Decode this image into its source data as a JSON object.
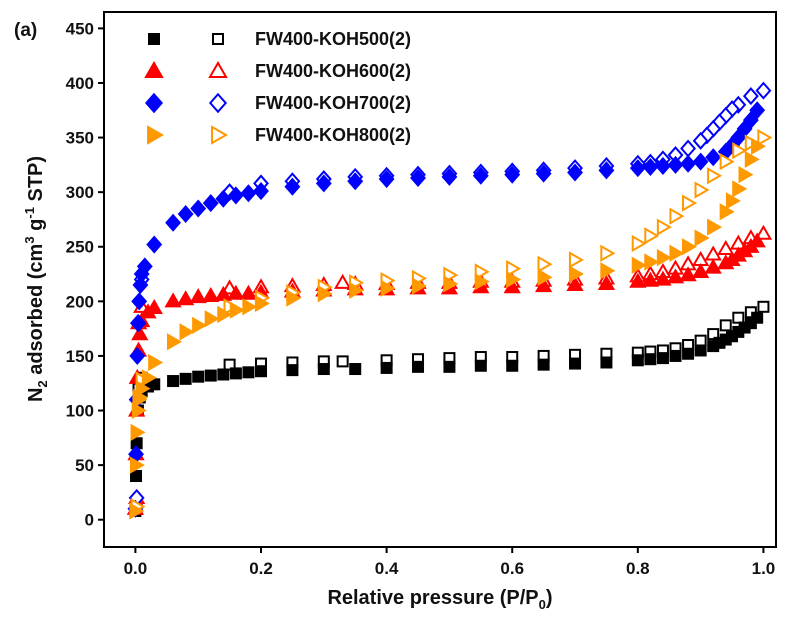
{
  "chart_data": {
    "type": "scatter",
    "panel_label": "(a)",
    "xlabel": "Relative pressure (P/P",
    "xlabel_sub": "0",
    "xlabel_end": ")",
    "ylabel": {
      "n": "N",
      "n_sub": "2",
      "mid": " adsorbed (cm",
      "cm_sup": "3",
      "g": " g",
      "g_sup": "-1",
      "end": " STP)"
    },
    "xlim": [
      -0.05,
      1.02
    ],
    "ylim": [
      -25,
      465
    ],
    "xticks": [
      0.0,
      0.2,
      0.4,
      0.6,
      0.8,
      1.0
    ],
    "xtick_labels": [
      "0.0",
      "0.2",
      "0.4",
      "0.6",
      "0.8",
      "1.0"
    ],
    "yticks": [
      0,
      50,
      100,
      150,
      200,
      250,
      300,
      350,
      400,
      450
    ],
    "ytick_labels": [
      "0",
      "50",
      "100",
      "150",
      "200",
      "250",
      "300",
      "350",
      "400",
      "450"
    ],
    "legend_position": "top-left",
    "series": [
      {
        "name": "FW400-KOH500(2)",
        "color": "#000000",
        "marker": "square",
        "adsorption": [
          [
            0.0,
            8
          ],
          [
            0.001,
            40
          ],
          [
            0.002,
            70
          ],
          [
            0.004,
            100
          ],
          [
            0.007,
            112
          ],
          [
            0.01,
            118
          ],
          [
            0.02,
            122
          ],
          [
            0.03,
            124
          ],
          [
            0.06,
            127
          ],
          [
            0.08,
            129
          ],
          [
            0.1,
            131
          ],
          [
            0.12,
            132
          ],
          [
            0.14,
            133
          ],
          [
            0.16,
            134
          ],
          [
            0.18,
            135
          ],
          [
            0.2,
            136
          ],
          [
            0.25,
            137
          ],
          [
            0.3,
            138
          ],
          [
            0.35,
            138
          ],
          [
            0.4,
            139
          ],
          [
            0.45,
            140
          ],
          [
            0.5,
            140
          ],
          [
            0.55,
            141
          ],
          [
            0.6,
            141
          ],
          [
            0.65,
            142
          ],
          [
            0.7,
            143
          ],
          [
            0.75,
            144
          ],
          [
            0.8,
            146
          ],
          [
            0.82,
            147
          ],
          [
            0.84,
            148
          ],
          [
            0.86,
            150
          ],
          [
            0.88,
            152
          ],
          [
            0.9,
            155
          ],
          [
            0.92,
            159
          ],
          [
            0.93,
            162
          ],
          [
            0.94,
            165
          ],
          [
            0.95,
            168
          ],
          [
            0.96,
            172
          ],
          [
            0.97,
            176
          ],
          [
            0.98,
            180
          ],
          [
            0.99,
            185
          ]
        ],
        "desorption": [
          [
            1.0,
            195
          ],
          [
            0.98,
            190
          ],
          [
            0.96,
            185
          ],
          [
            0.94,
            178
          ],
          [
            0.92,
            170
          ],
          [
            0.9,
            164
          ],
          [
            0.88,
            160
          ],
          [
            0.86,
            157
          ],
          [
            0.84,
            155
          ],
          [
            0.82,
            154
          ],
          [
            0.8,
            153
          ],
          [
            0.75,
            152
          ],
          [
            0.7,
            151
          ],
          [
            0.65,
            150
          ],
          [
            0.6,
            149
          ],
          [
            0.55,
            149
          ],
          [
            0.5,
            148
          ],
          [
            0.45,
            147
          ],
          [
            0.4,
            146
          ],
          [
            0.33,
            145
          ],
          [
            0.3,
            145
          ],
          [
            0.25,
            144
          ],
          [
            0.2,
            143
          ],
          [
            0.15,
            142
          ],
          [
            0.01,
            130
          ],
          [
            0.005,
            120
          ],
          [
            0.002,
            10
          ]
        ]
      },
      {
        "name": "FW400-KOH600(2)",
        "color": "#ff0000",
        "marker": "triangle-up",
        "adsorption": [
          [
            0.0,
            10
          ],
          [
            0.001,
            60
          ],
          [
            0.002,
            100
          ],
          [
            0.003,
            130
          ],
          [
            0.005,
            155
          ],
          [
            0.007,
            170
          ],
          [
            0.01,
            182
          ],
          [
            0.02,
            190
          ],
          [
            0.03,
            194
          ],
          [
            0.06,
            200
          ],
          [
            0.08,
            202
          ],
          [
            0.1,
            204
          ],
          [
            0.12,
            205
          ],
          [
            0.14,
            206
          ],
          [
            0.16,
            207
          ],
          [
            0.18,
            207
          ],
          [
            0.2,
            208
          ],
          [
            0.25,
            209
          ],
          [
            0.3,
            210
          ],
          [
            0.35,
            211
          ],
          [
            0.4,
            211
          ],
          [
            0.45,
            212
          ],
          [
            0.5,
            212
          ],
          [
            0.55,
            213
          ],
          [
            0.6,
            213
          ],
          [
            0.65,
            214
          ],
          [
            0.7,
            215
          ],
          [
            0.75,
            216
          ],
          [
            0.8,
            218
          ],
          [
            0.82,
            219
          ],
          [
            0.84,
            220
          ],
          [
            0.86,
            222
          ],
          [
            0.88,
            224
          ],
          [
            0.9,
            227
          ],
          [
            0.92,
            231
          ],
          [
            0.94,
            235
          ],
          [
            0.95,
            238
          ],
          [
            0.96,
            242
          ],
          [
            0.97,
            246
          ],
          [
            0.98,
            250
          ],
          [
            0.99,
            255
          ]
        ],
        "desorption": [
          [
            1.0,
            262
          ],
          [
            0.98,
            258
          ],
          [
            0.96,
            253
          ],
          [
            0.94,
            248
          ],
          [
            0.92,
            243
          ],
          [
            0.9,
            238
          ],
          [
            0.88,
            234
          ],
          [
            0.86,
            230
          ],
          [
            0.84,
            227
          ],
          [
            0.82,
            225
          ],
          [
            0.8,
            223
          ],
          [
            0.75,
            221
          ],
          [
            0.7,
            220
          ],
          [
            0.65,
            219
          ],
          [
            0.6,
            218
          ],
          [
            0.55,
            218
          ],
          [
            0.5,
            217
          ],
          [
            0.45,
            217
          ],
          [
            0.4,
            216
          ],
          [
            0.35,
            216
          ],
          [
            0.33,
            217
          ],
          [
            0.3,
            215
          ],
          [
            0.25,
            214
          ],
          [
            0.2,
            213
          ],
          [
            0.15,
            212
          ],
          [
            0.01,
            195
          ],
          [
            0.005,
            180
          ],
          [
            0.002,
            20
          ]
        ]
      },
      {
        "name": "FW400-KOH700(2)",
        "color": "#0000ff",
        "marker": "diamond",
        "adsorption": [
          [
            0.0,
            10
          ],
          [
            0.001,
            60
          ],
          [
            0.002,
            110
          ],
          [
            0.003,
            150
          ],
          [
            0.004,
            180
          ],
          [
            0.006,
            200
          ],
          [
            0.008,
            215
          ],
          [
            0.01,
            225
          ],
          [
            0.015,
            232
          ],
          [
            0.03,
            252
          ],
          [
            0.06,
            272
          ],
          [
            0.08,
            280
          ],
          [
            0.1,
            285
          ],
          [
            0.12,
            290
          ],
          [
            0.14,
            294
          ],
          [
            0.16,
            297
          ],
          [
            0.18,
            299
          ],
          [
            0.2,
            301
          ],
          [
            0.25,
            305
          ],
          [
            0.3,
            308
          ],
          [
            0.35,
            310
          ],
          [
            0.4,
            312
          ],
          [
            0.45,
            313
          ],
          [
            0.5,
            314
          ],
          [
            0.55,
            315
          ],
          [
            0.6,
            316
          ],
          [
            0.65,
            317
          ],
          [
            0.7,
            318
          ],
          [
            0.75,
            320
          ],
          [
            0.8,
            322
          ],
          [
            0.82,
            323
          ],
          [
            0.84,
            324
          ],
          [
            0.86,
            325
          ],
          [
            0.88,
            326
          ],
          [
            0.9,
            328
          ],
          [
            0.92,
            332
          ],
          [
            0.94,
            337
          ],
          [
            0.95,
            343
          ],
          [
            0.96,
            350
          ],
          [
            0.97,
            358
          ],
          [
            0.98,
            366
          ],
          [
            0.99,
            375
          ]
        ],
        "desorption": [
          [
            1.0,
            393
          ],
          [
            0.98,
            388
          ],
          [
            0.96,
            380
          ],
          [
            0.95,
            376
          ],
          [
            0.94,
            370
          ],
          [
            0.93,
            364
          ],
          [
            0.92,
            358
          ],
          [
            0.91,
            352
          ],
          [
            0.9,
            347
          ],
          [
            0.88,
            340
          ],
          [
            0.86,
            334
          ],
          [
            0.84,
            330
          ],
          [
            0.82,
            327
          ],
          [
            0.8,
            326
          ],
          [
            0.75,
            324
          ],
          [
            0.7,
            322
          ],
          [
            0.65,
            320
          ],
          [
            0.6,
            319
          ],
          [
            0.55,
            318
          ],
          [
            0.5,
            317
          ],
          [
            0.45,
            316
          ],
          [
            0.4,
            315
          ],
          [
            0.35,
            314
          ],
          [
            0.3,
            312
          ],
          [
            0.25,
            310
          ],
          [
            0.2,
            308
          ],
          [
            0.15,
            300
          ],
          [
            0.01,
            220
          ],
          [
            0.005,
            180
          ],
          [
            0.002,
            20
          ]
        ]
      },
      {
        "name": "FW400-KOH800(2)",
        "color": "#ff9900",
        "marker": "triangle-right",
        "adsorption": [
          [
            0.0,
            8
          ],
          [
            0.001,
            50
          ],
          [
            0.002,
            80
          ],
          [
            0.004,
            100
          ],
          [
            0.006,
            112
          ],
          [
            0.01,
            120
          ],
          [
            0.02,
            130
          ],
          [
            0.03,
            144
          ],
          [
            0.06,
            163
          ],
          [
            0.08,
            172
          ],
          [
            0.1,
            178
          ],
          [
            0.12,
            184
          ],
          [
            0.14,
            188
          ],
          [
            0.16,
            192
          ],
          [
            0.18,
            195
          ],
          [
            0.2,
            198
          ],
          [
            0.25,
            203
          ],
          [
            0.3,
            207
          ],
          [
            0.35,
            210
          ],
          [
            0.4,
            212
          ],
          [
            0.45,
            214
          ],
          [
            0.5,
            216
          ],
          [
            0.55,
            218
          ],
          [
            0.6,
            220
          ],
          [
            0.65,
            222
          ],
          [
            0.7,
            225
          ],
          [
            0.75,
            228
          ],
          [
            0.8,
            233
          ],
          [
            0.82,
            236
          ],
          [
            0.84,
            240
          ],
          [
            0.86,
            244
          ],
          [
            0.88,
            250
          ],
          [
            0.9,
            258
          ],
          [
            0.92,
            268
          ],
          [
            0.94,
            282
          ],
          [
            0.95,
            292
          ],
          [
            0.96,
            303
          ],
          [
            0.97,
            316
          ],
          [
            0.98,
            330
          ],
          [
            0.99,
            342
          ]
        ],
        "desorption": [
          [
            1.0,
            350
          ],
          [
            0.98,
            345
          ],
          [
            0.96,
            338
          ],
          [
            0.94,
            328
          ],
          [
            0.92,
            315
          ],
          [
            0.9,
            302
          ],
          [
            0.88,
            290
          ],
          [
            0.86,
            278
          ],
          [
            0.84,
            268
          ],
          [
            0.82,
            260
          ],
          [
            0.8,
            253
          ],
          [
            0.75,
            244
          ],
          [
            0.7,
            238
          ],
          [
            0.65,
            234
          ],
          [
            0.6,
            230
          ],
          [
            0.55,
            227
          ],
          [
            0.5,
            224
          ],
          [
            0.45,
            221
          ],
          [
            0.4,
            219
          ],
          [
            0.35,
            217
          ],
          [
            0.3,
            213
          ],
          [
            0.25,
            208
          ],
          [
            0.2,
            203
          ],
          [
            0.15,
            195
          ],
          [
            0.01,
            128
          ],
          [
            0.005,
            110
          ],
          [
            0.002,
            12
          ]
        ]
      }
    ]
  }
}
